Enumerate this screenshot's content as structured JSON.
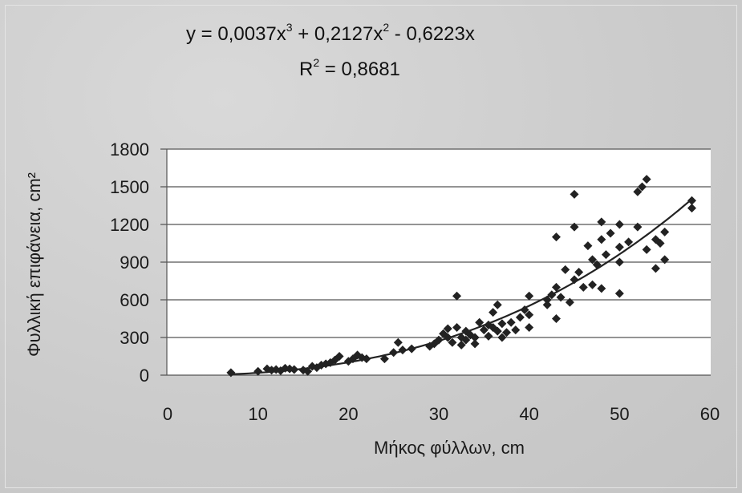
{
  "equation": {
    "prefix": "y = 0,0037x",
    "exp1": "3",
    "mid": " + 0,2127x",
    "exp2": "2",
    "suffix": " - 0,6223x",
    "r2_label": "R",
    "r2_exp": "2",
    "r2_value": " = 0,8681"
  },
  "chart_data": {
    "type": "scatter",
    "title": "",
    "xlabel": "Μήκος φύλλων, cm",
    "ylabel": "Φυλλική επιφάνεια, cm²",
    "xlim": [
      0,
      60
    ],
    "ylim": [
      0,
      1800
    ],
    "x_ticks": [
      "0",
      "10",
      "20",
      "30",
      "40",
      "50",
      "60"
    ],
    "y_ticks": [
      "0",
      "300",
      "600",
      "900",
      "1200",
      "1500",
      "1800"
    ],
    "grid": "horizontal",
    "marker_color": "#222222",
    "trendline": {
      "type": "polynomial",
      "coefficients": {
        "a3": 0.0037,
        "a2": 0.2127,
        "a1": -0.6223,
        "a0": 0
      },
      "equation": "y = 0,0037x3 + 0,2127x2 - 0,6223x",
      "r2": 0.8681
    },
    "points": [
      [
        7,
        20
      ],
      [
        10,
        30
      ],
      [
        11,
        50
      ],
      [
        11.5,
        40
      ],
      [
        12,
        45
      ],
      [
        12.5,
        35
      ],
      [
        13,
        55
      ],
      [
        13.5,
        50
      ],
      [
        14,
        45
      ],
      [
        15,
        40
      ],
      [
        15.5,
        30
      ],
      [
        16,
        70
      ],
      [
        16.5,
        60
      ],
      [
        17,
        80
      ],
      [
        17.5,
        90
      ],
      [
        18,
        100
      ],
      [
        18.5,
        120
      ],
      [
        19,
        150
      ],
      [
        20,
        110
      ],
      [
        20.5,
        130
      ],
      [
        21,
        160
      ],
      [
        21.5,
        140
      ],
      [
        22,
        130
      ],
      [
        24,
        130
      ],
      [
        25,
        180
      ],
      [
        25.5,
        260
      ],
      [
        26,
        200
      ],
      [
        27,
        210
      ],
      [
        29,
        230
      ],
      [
        29.5,
        250
      ],
      [
        30,
        280
      ],
      [
        30.5,
        330
      ],
      [
        31,
        300
      ],
      [
        31,
        370
      ],
      [
        31.5,
        260
      ],
      [
        32,
        380
      ],
      [
        32,
        630
      ],
      [
        32.5,
        240
      ],
      [
        32.5,
        300
      ],
      [
        33,
        280
      ],
      [
        33,
        350
      ],
      [
        33.5,
        320
      ],
      [
        34,
        300
      ],
      [
        34,
        250
      ],
      [
        34.5,
        420
      ],
      [
        35,
        360
      ],
      [
        35.5,
        400
      ],
      [
        35.5,
        310
      ],
      [
        36,
        380
      ],
      [
        36,
        500
      ],
      [
        36.5,
        560
      ],
      [
        36.5,
        350
      ],
      [
        37,
        410
      ],
      [
        37,
        300
      ],
      [
        37.5,
        340
      ],
      [
        38,
        420
      ],
      [
        38.5,
        360
      ],
      [
        39,
        460
      ],
      [
        39.5,
        520
      ],
      [
        40,
        480
      ],
      [
        40,
        380
      ],
      [
        40,
        630
      ],
      [
        42,
        560
      ],
      [
        42,
        600
      ],
      [
        42.5,
        640
      ],
      [
        43,
        700
      ],
      [
        43,
        1100
      ],
      [
        43,
        450
      ],
      [
        43.5,
        620
      ],
      [
        44,
        840
      ],
      [
        44.5,
        580
      ],
      [
        45,
        1440
      ],
      [
        45,
        1180
      ],
      [
        45,
        760
      ],
      [
        45.5,
        820
      ],
      [
        46,
        700
      ],
      [
        46.5,
        1030
      ],
      [
        47,
        920
      ],
      [
        47,
        720
      ],
      [
        47.5,
        880
      ],
      [
        48,
        1080
      ],
      [
        48,
        1220
      ],
      [
        48,
        690
      ],
      [
        48.5,
        960
      ],
      [
        49,
        1130
      ],
      [
        50,
        1200
      ],
      [
        50,
        1020
      ],
      [
        50,
        900
      ],
      [
        50,
        650
      ],
      [
        51,
        1060
      ],
      [
        52,
        1180
      ],
      [
        52,
        1460
      ],
      [
        52.5,
        1500
      ],
      [
        53,
        1560
      ],
      [
        53,
        1000
      ],
      [
        54,
        1080
      ],
      [
        54,
        850
      ],
      [
        54.5,
        1050
      ],
      [
        55,
        1140
      ],
      [
        55,
        920
      ],
      [
        58,
        1390
      ],
      [
        58,
        1330
      ]
    ]
  }
}
